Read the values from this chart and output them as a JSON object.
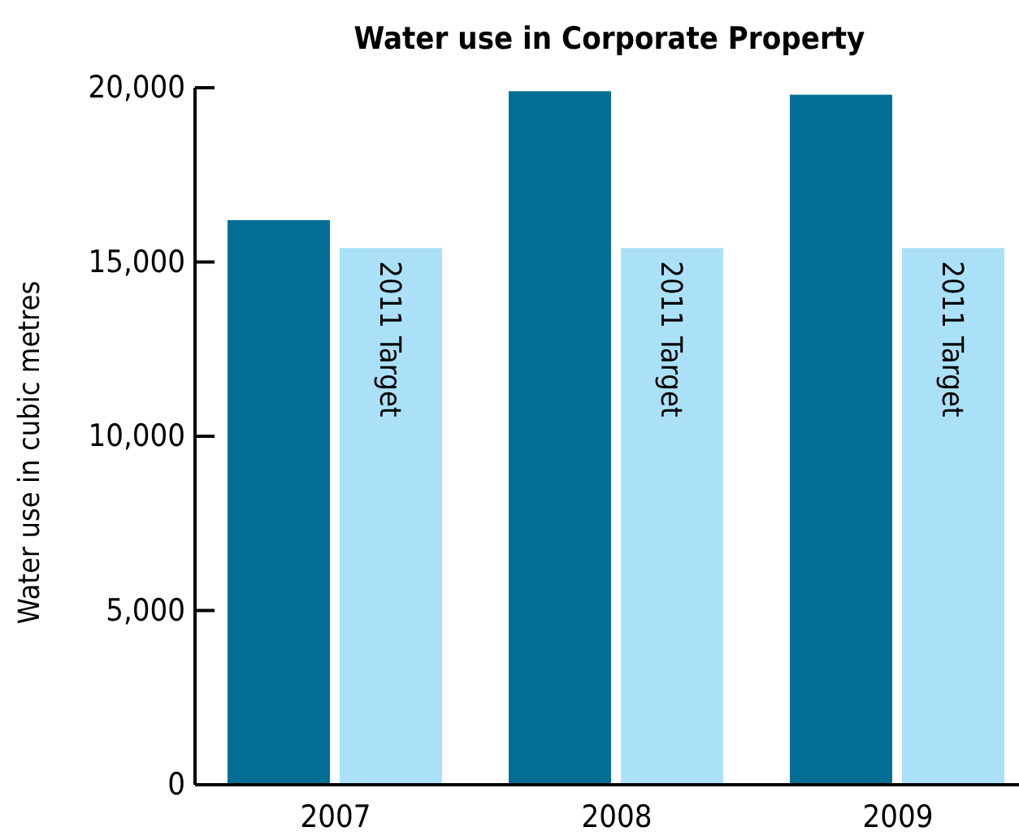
{
  "chart_data": {
    "type": "bar",
    "title": "Water use in Corporate Property",
    "ylabel": "Water use in cubic metres",
    "categories": [
      "2007",
      "2008",
      "2009"
    ],
    "series": [
      {
        "color": "#036f96",
        "values": [
          16200,
          19900,
          19800
        ]
      },
      {
        "name": "2011 Target",
        "color": "#aae1f8",
        "values": [
          15400,
          15400,
          15400
        ]
      }
    ],
    "ylim": [
      0,
      20000
    ],
    "yticks": [
      {
        "value": 0,
        "label": "0"
      },
      {
        "value": 5000,
        "label": "5,000"
      },
      {
        "value": 10000,
        "label": "10,000"
      },
      {
        "value": 15000,
        "label": "15,000"
      },
      {
        "value": 20000,
        "label": "20,000"
      }
    ],
    "grid": false,
    "legend": false
  }
}
